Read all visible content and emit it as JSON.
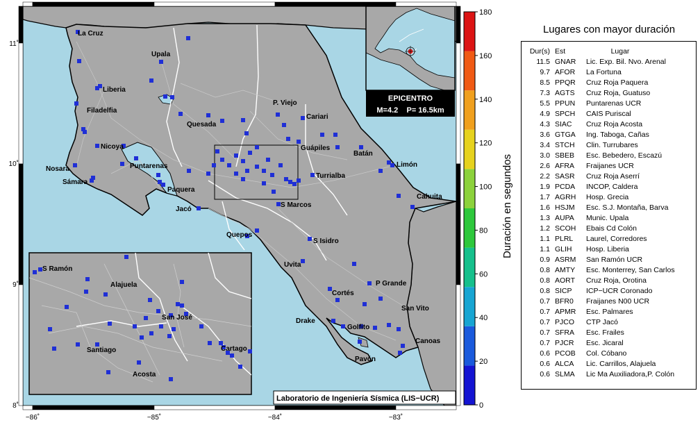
{
  "map": {
    "title_box": "Laboratorio de Ingeniería Sísmica (LIS−UCR)",
    "epicenter": {
      "title": "EPICENTRO",
      "info": "M=4.2    P= 16.5km"
    },
    "x_ticks": [
      "−86˚",
      "−85˚",
      "−84˚",
      "−83˚"
    ],
    "y_ticks": [
      "11˚",
      "10˚",
      "9˚",
      "8˚"
    ],
    "colors": {
      "sea": "#a9d6e5",
      "land": "#a8a8a8",
      "station": "#1f2fd6",
      "epicenter": "#e02020"
    },
    "cities": {
      "la_cruz": "La Cruz",
      "upala": "Upala",
      "liberia": "Liberia",
      "filadelfia": "Filadelfia",
      "quesada": "Quesada",
      "pviejo": "P. Viejo",
      "cariari": "Cariari",
      "guapiles": "Guápiles",
      "nicoya": "Nicoya",
      "batan": "Batán",
      "limon": "Limón",
      "nosara": "Nosara",
      "puntarenas": "Puntarenas",
      "turrialba": "Turrialba",
      "samara": "Sámara",
      "paquera": "Paquera",
      "cahuita": "Cahuita",
      "smarcos": "S Marcos",
      "jaco": "Jacó",
      "quepos": "Quepos",
      "sisidro": "S Isidro",
      "uvita": "Uvita",
      "pgrande": "P Grande",
      "cortes": "Cortés",
      "sanvito": "San Vito",
      "drake": "Drake",
      "golfito": "Golfito",
      "canoas": "Canoas",
      "pavon": "Pavón"
    },
    "inset_cities": {
      "sramon": "S Ramón",
      "alajuela": "Alajuela",
      "sanjose": "San José",
      "santiago": "Santiago",
      "cartago": "Cartago",
      "acosta": "Acosta"
    }
  },
  "colorbar": {
    "label": "Duración en segundos",
    "ticks": [
      "0",
      "20",
      "40",
      "60",
      "80",
      "100",
      "120",
      "140",
      "160",
      "180"
    ],
    "colors": [
      "#1414d2",
      "#1a5adc",
      "#17a5d2",
      "#16c08c",
      "#2ec83c",
      "#8cd23c",
      "#e6d21e",
      "#f0a01e",
      "#f05a14",
      "#dc1414"
    ]
  },
  "panel": {
    "title": "Lugares con mayor duración",
    "headers": {
      "dur": "Dur(s)",
      "est": "Est",
      "lugar": "Lugar"
    },
    "rows": [
      {
        "dur": "11.5",
        "est": "GNAR",
        "lugar": "Lic. Exp. Bil. Nvo. Arenal"
      },
      {
        "dur": "9.7",
        "est": "AFOR",
        "lugar": "La Fortuna"
      },
      {
        "dur": "8.5",
        "est": "PPQR",
        "lugar": "Cruz Roja Paquera"
      },
      {
        "dur": "7.3",
        "est": "AGTS",
        "lugar": "Cruz Roja, Guatuso"
      },
      {
        "dur": "5.5",
        "est": "PPUN",
        "lugar": "Puntarenas UCR"
      },
      {
        "dur": "4.9",
        "est": "SPCH",
        "lugar": "CAIS Puriscal"
      },
      {
        "dur": "4.3",
        "est": "SIAC",
        "lugar": "Cruz Roja Acosta"
      },
      {
        "dur": "3.6",
        "est": "GTGA",
        "lugar": "Ing. Taboga, Cañas"
      },
      {
        "dur": "3.4",
        "est": "STCH",
        "lugar": "Clin. Turrubares"
      },
      {
        "dur": "3.0",
        "est": "SBEB",
        "lugar": "Esc. Bebedero, Escazú"
      },
      {
        "dur": "2.6",
        "est": "AFRA",
        "lugar": "Fraijanes UCR"
      },
      {
        "dur": "2.2",
        "est": "SASR",
        "lugar": "Cruz Roja Aserrí"
      },
      {
        "dur": "1.9",
        "est": "PCDA",
        "lugar": "INCOP, Caldera"
      },
      {
        "dur": "1.7",
        "est": "AGRH",
        "lugar": "Hosp. Grecia"
      },
      {
        "dur": "1.6",
        "est": "HSJM",
        "lugar": "Esc. S.J. Montaña, Barva"
      },
      {
        "dur": "1.3",
        "est": "AUPA",
        "lugar": "Munic. Upala"
      },
      {
        "dur": "1.2",
        "est": "SCOH",
        "lugar": "Ebais Cd Colón"
      },
      {
        "dur": "1.1",
        "est": "PLRL",
        "lugar": "Laurel, Corredores"
      },
      {
        "dur": "1.1",
        "est": "GLIH",
        "lugar": "Hosp. Liberia"
      },
      {
        "dur": "0.9",
        "est": "ASRM",
        "lugar": "San Ramón UCR"
      },
      {
        "dur": "0.8",
        "est": "AMTY",
        "lugar": "Esc. Monterrey, San Carlos"
      },
      {
        "dur": "0.8",
        "est": "AORT",
        "lugar": "Cruz Roja, Orotina"
      },
      {
        "dur": "0.8",
        "est": "SICP",
        "lugar": "ICP−UCR Coronado"
      },
      {
        "dur": "0.7",
        "est": "BFR0",
        "lugar": "Fraijanes N00 UCR"
      },
      {
        "dur": "0.7",
        "est": "APMR",
        "lugar": "Esc. Palmares"
      },
      {
        "dur": "0.7",
        "est": "PJCO",
        "lugar": "CTP Jacó"
      },
      {
        "dur": "0.7",
        "est": "SFRA",
        "lugar": "Esc. Frailes"
      },
      {
        "dur": "0.7",
        "est": "PJCR",
        "lugar": "Esc. Jicaral"
      },
      {
        "dur": "0.6",
        "est": "PCOB",
        "lugar": "Col. Cóbano"
      },
      {
        "dur": "0.6",
        "est": "ALCA",
        "lugar": "Lic. Carrillos, Alajuela"
      },
      {
        "dur": "0.6",
        "est": "SLMA",
        "lugar": "Lic Ma Auxiliadora,P. Colón"
      }
    ]
  }
}
